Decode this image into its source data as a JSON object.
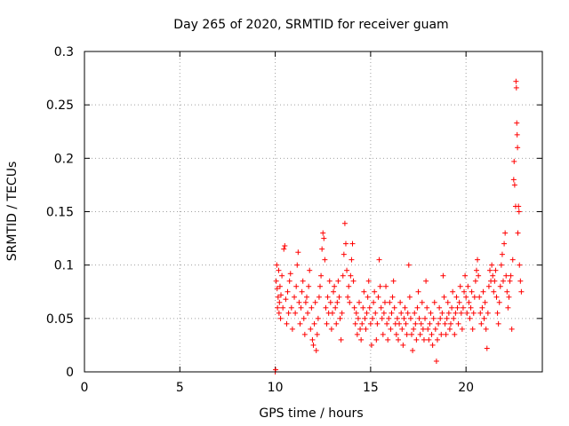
{
  "chart_data": {
    "type": "scatter",
    "title": "Day 265 of 2020, SRMTID for receiver guam",
    "xlabel": "GPS time / hours",
    "ylabel": "SRMTID / TECUs",
    "xlim": [
      0,
      24
    ],
    "ylim": [
      0,
      0.3
    ],
    "grid": true,
    "marker": "+",
    "marker_color": "#ff0000",
    "xticks": [
      {
        "value": 0,
        "label": "0"
      },
      {
        "value": 5,
        "label": "5"
      },
      {
        "value": 10,
        "label": "10"
      },
      {
        "value": 15,
        "label": "15"
      },
      {
        "value": 20,
        "label": "20"
      }
    ],
    "yticks": [
      {
        "value": 0,
        "label": "0"
      },
      {
        "value": 0.05,
        "label": "0.05"
      },
      {
        "value": 0.1,
        "label": "0.1"
      },
      {
        "value": 0.15,
        "label": "0.15"
      },
      {
        "value": 0.2,
        "label": "0.2"
      },
      {
        "value": 0.25,
        "label": "0.25"
      },
      {
        "value": 0.3,
        "label": "0.3"
      }
    ],
    "series": [
      {
        "name": "SRMTID",
        "points": [
          [
            10.0,
            0.0
          ],
          [
            10.02,
            0.002
          ],
          [
            10.05,
            0.085
          ],
          [
            10.08,
            0.1
          ],
          [
            10.1,
            0.078
          ],
          [
            10.12,
            0.06
          ],
          [
            10.15,
            0.07
          ],
          [
            10.18,
            0.095
          ],
          [
            10.2,
            0.055
          ],
          [
            10.22,
            0.065
          ],
          [
            10.25,
            0.08
          ],
          [
            10.28,
            0.05
          ],
          [
            10.3,
            0.072
          ],
          [
            10.35,
            0.09
          ],
          [
            10.4,
            0.06
          ],
          [
            10.45,
            0.115
          ],
          [
            10.5,
            0.118
          ],
          [
            10.55,
            0.068
          ],
          [
            10.6,
            0.045
          ],
          [
            10.65,
            0.075
          ],
          [
            10.7,
            0.055
          ],
          [
            10.75,
            0.085
          ],
          [
            10.8,
            0.092
          ],
          [
            10.85,
            0.06
          ],
          [
            10.9,
            0.04
          ],
          [
            11.0,
            0.07
          ],
          [
            11.05,
            0.055
          ],
          [
            11.1,
            0.08
          ],
          [
            11.15,
            0.1
          ],
          [
            11.2,
            0.112
          ],
          [
            11.25,
            0.065
          ],
          [
            11.3,
            0.045
          ],
          [
            11.35,
            0.06
          ],
          [
            11.4,
            0.075
          ],
          [
            11.45,
            0.085
          ],
          [
            11.5,
            0.05
          ],
          [
            11.55,
            0.035
          ],
          [
            11.6,
            0.065
          ],
          [
            11.65,
            0.07
          ],
          [
            11.7,
            0.055
          ],
          [
            11.75,
            0.08
          ],
          [
            11.8,
            0.095
          ],
          [
            11.85,
            0.04
          ],
          [
            11.9,
            0.06
          ],
          [
            11.95,
            0.03
          ],
          [
            12.0,
            0.025
          ],
          [
            12.05,
            0.045
          ],
          [
            12.1,
            0.065
          ],
          [
            12.15,
            0.02
          ],
          [
            12.2,
            0.035
          ],
          [
            12.25,
            0.05
          ],
          [
            12.3,
            0.07
          ],
          [
            12.35,
            0.08
          ],
          [
            12.4,
            0.09
          ],
          [
            12.45,
            0.115
          ],
          [
            12.5,
            0.13
          ],
          [
            12.55,
            0.125
          ],
          [
            12.6,
            0.105
          ],
          [
            12.65,
            0.06
          ],
          [
            12.7,
            0.045
          ],
          [
            12.75,
            0.07
          ],
          [
            12.8,
            0.055
          ],
          [
            12.85,
            0.085
          ],
          [
            12.9,
            0.065
          ],
          [
            12.95,
            0.04
          ],
          [
            13.0,
            0.055
          ],
          [
            13.05,
            0.075
          ],
          [
            13.1,
            0.08
          ],
          [
            13.15,
            0.06
          ],
          [
            13.2,
            0.045
          ],
          [
            13.25,
            0.065
          ],
          [
            13.3,
            0.085
          ],
          [
            13.35,
            0.07
          ],
          [
            13.4,
            0.05
          ],
          [
            13.45,
            0.03
          ],
          [
            13.5,
            0.055
          ],
          [
            13.55,
            0.09
          ],
          [
            13.6,
            0.11
          ],
          [
            13.65,
            0.139
          ],
          [
            13.7,
            0.12
          ],
          [
            13.75,
            0.095
          ],
          [
            13.8,
            0.07
          ],
          [
            13.85,
            0.08
          ],
          [
            13.9,
            0.065
          ],
          [
            13.95,
            0.09
          ],
          [
            14.0,
            0.105
          ],
          [
            14.05,
            0.12
          ],
          [
            14.1,
            0.085
          ],
          [
            14.15,
            0.06
          ],
          [
            14.2,
            0.045
          ],
          [
            14.25,
            0.055
          ],
          [
            14.3,
            0.035
          ],
          [
            14.35,
            0.05
          ],
          [
            14.4,
            0.065
          ],
          [
            14.45,
            0.04
          ],
          [
            14.5,
            0.03
          ],
          [
            14.55,
            0.045
          ],
          [
            14.6,
            0.06
          ],
          [
            14.65,
            0.075
          ],
          [
            14.7,
            0.05
          ],
          [
            14.75,
            0.04
          ],
          [
            14.8,
            0.055
          ],
          [
            14.85,
            0.07
          ],
          [
            14.9,
            0.085
          ],
          [
            14.95,
            0.06
          ],
          [
            15.0,
            0.045
          ],
          [
            15.05,
            0.025
          ],
          [
            15.1,
            0.05
          ],
          [
            15.15,
            0.065
          ],
          [
            15.2,
            0.075
          ],
          [
            15.25,
            0.055
          ],
          [
            15.3,
            0.03
          ],
          [
            15.35,
            0.045
          ],
          [
            15.4,
            0.07
          ],
          [
            15.45,
            0.105
          ],
          [
            15.5,
            0.08
          ],
          [
            15.55,
            0.06
          ],
          [
            15.6,
            0.05
          ],
          [
            15.65,
            0.035
          ],
          [
            15.7,
            0.055
          ],
          [
            15.75,
            0.065
          ],
          [
            15.8,
            0.08
          ],
          [
            15.85,
            0.045
          ],
          [
            15.9,
            0.03
          ],
          [
            15.95,
            0.05
          ],
          [
            16.0,
            0.065
          ],
          [
            16.05,
            0.04
          ],
          [
            16.1,
            0.055
          ],
          [
            16.15,
            0.07
          ],
          [
            16.2,
            0.085
          ],
          [
            16.25,
            0.06
          ],
          [
            16.3,
            0.045
          ],
          [
            16.35,
            0.035
          ],
          [
            16.4,
            0.05
          ],
          [
            16.45,
            0.03
          ],
          [
            16.5,
            0.045
          ],
          [
            16.55,
            0.065
          ],
          [
            16.6,
            0.055
          ],
          [
            16.65,
            0.04
          ],
          [
            16.7,
            0.025
          ],
          [
            16.75,
            0.05
          ],
          [
            16.8,
            0.06
          ],
          [
            16.85,
            0.045
          ],
          [
            16.9,
            0.035
          ],
          [
            16.95,
            0.055
          ],
          [
            17.0,
            0.1
          ],
          [
            17.05,
            0.07
          ],
          [
            17.1,
            0.05
          ],
          [
            17.15,
            0.035
          ],
          [
            17.2,
            0.02
          ],
          [
            17.25,
            0.04
          ],
          [
            17.3,
            0.055
          ],
          [
            17.35,
            0.045
          ],
          [
            17.4,
            0.03
          ],
          [
            17.45,
            0.06
          ],
          [
            17.5,
            0.075
          ],
          [
            17.55,
            0.05
          ],
          [
            17.6,
            0.035
          ],
          [
            17.65,
            0.045
          ],
          [
            17.7,
            0.065
          ],
          [
            17.75,
            0.04
          ],
          [
            17.8,
            0.03
          ],
          [
            17.85,
            0.05
          ],
          [
            17.9,
            0.085
          ],
          [
            17.95,
            0.06
          ],
          [
            18.0,
            0.04
          ],
          [
            18.05,
            0.03
          ],
          [
            18.1,
            0.045
          ],
          [
            18.15,
            0.055
          ],
          [
            18.2,
            0.035
          ],
          [
            18.25,
            0.025
          ],
          [
            18.3,
            0.05
          ],
          [
            18.35,
            0.065
          ],
          [
            18.4,
            0.04
          ],
          [
            18.45,
            0.01
          ],
          [
            18.5,
            0.03
          ],
          [
            18.55,
            0.045
          ],
          [
            18.6,
            0.06
          ],
          [
            18.65,
            0.05
          ],
          [
            18.7,
            0.035
          ],
          [
            18.75,
            0.055
          ],
          [
            18.8,
            0.09
          ],
          [
            18.85,
            0.07
          ],
          [
            18.9,
            0.045
          ],
          [
            18.95,
            0.035
          ],
          [
            19.0,
            0.05
          ],
          [
            19.05,
            0.065
          ],
          [
            19.1,
            0.055
          ],
          [
            19.15,
            0.04
          ],
          [
            19.2,
            0.045
          ],
          [
            19.25,
            0.06
          ],
          [
            19.3,
            0.075
          ],
          [
            19.35,
            0.05
          ],
          [
            19.4,
            0.035
          ],
          [
            19.45,
            0.055
          ],
          [
            19.5,
            0.07
          ],
          [
            19.55,
            0.06
          ],
          [
            19.6,
            0.045
          ],
          [
            19.65,
            0.065
          ],
          [
            19.7,
            0.08
          ],
          [
            19.75,
            0.055
          ],
          [
            19.8,
            0.04
          ],
          [
            19.85,
            0.06
          ],
          [
            19.9,
            0.075
          ],
          [
            19.95,
            0.09
          ],
          [
            20.0,
            0.07
          ],
          [
            20.05,
            0.055
          ],
          [
            20.1,
            0.08
          ],
          [
            20.15,
            0.065
          ],
          [
            20.2,
            0.05
          ],
          [
            20.25,
            0.06
          ],
          [
            20.3,
            0.075
          ],
          [
            20.35,
            0.04
          ],
          [
            20.4,
            0.055
          ],
          [
            20.45,
            0.07
          ],
          [
            20.5,
            0.085
          ],
          [
            20.55,
            0.095
          ],
          [
            20.6,
            0.105
          ],
          [
            20.65,
            0.09
          ],
          [
            20.7,
            0.07
          ],
          [
            20.75,
            0.055
          ],
          [
            20.8,
            0.045
          ],
          [
            20.85,
            0.06
          ],
          [
            20.9,
            0.075
          ],
          [
            20.95,
            0.05
          ],
          [
            21.0,
            0.065
          ],
          [
            21.05,
            0.04
          ],
          [
            21.1,
            0.022
          ],
          [
            21.15,
            0.055
          ],
          [
            21.2,
            0.08
          ],
          [
            21.25,
            0.095
          ],
          [
            21.3,
            0.085
          ],
          [
            21.35,
            0.1
          ],
          [
            21.4,
            0.09
          ],
          [
            21.45,
            0.075
          ],
          [
            21.5,
            0.085
          ],
          [
            21.55,
            0.095
          ],
          [
            21.6,
            0.07
          ],
          [
            21.65,
            0.055
          ],
          [
            21.7,
            0.045
          ],
          [
            21.75,
            0.065
          ],
          [
            21.8,
            0.08
          ],
          [
            21.85,
            0.1
          ],
          [
            21.9,
            0.11
          ],
          [
            21.95,
            0.085
          ],
          [
            22.0,
            0.12
          ],
          [
            22.05,
            0.13
          ],
          [
            22.1,
            0.09
          ],
          [
            22.15,
            0.075
          ],
          [
            22.2,
            0.06
          ],
          [
            22.25,
            0.07
          ],
          [
            22.3,
            0.085
          ],
          [
            22.35,
            0.09
          ],
          [
            22.4,
            0.04
          ],
          [
            22.45,
            0.105
          ],
          [
            22.5,
            0.18
          ],
          [
            22.52,
            0.197
          ],
          [
            22.55,
            0.175
          ],
          [
            22.6,
            0.155
          ],
          [
            22.62,
            0.272
          ],
          [
            22.64,
            0.266
          ],
          [
            22.66,
            0.233
          ],
          [
            22.68,
            0.222
          ],
          [
            22.7,
            0.21
          ],
          [
            22.72,
            0.13
          ],
          [
            22.75,
            0.155
          ],
          [
            22.78,
            0.15
          ],
          [
            22.8,
            0.1
          ],
          [
            22.85,
            0.085
          ],
          [
            22.9,
            0.075
          ]
        ]
      }
    ]
  }
}
